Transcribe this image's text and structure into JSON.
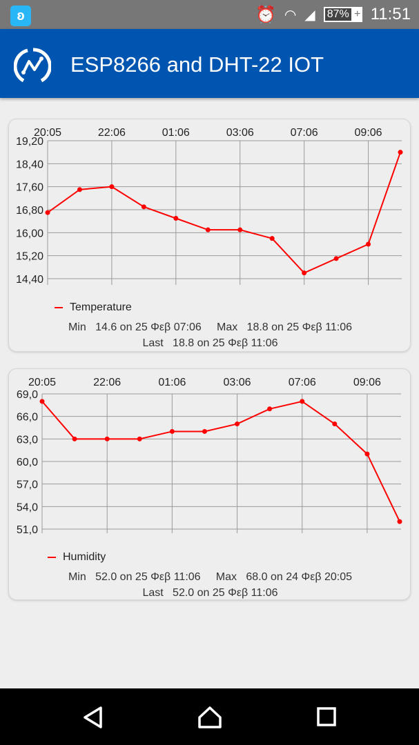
{
  "status_bar": {
    "time": "11:51",
    "battery": "87%",
    "icons": [
      "app-notification-icon",
      "alarm-icon",
      "wifi-icon",
      "signal-icon",
      "battery-charging-icon"
    ]
  },
  "header": {
    "title": "ESP8266 and DHT-22 IOT",
    "icon": "chart-logo-icon",
    "color": "#0055b0"
  },
  "chart_data": [
    {
      "type": "line",
      "x_tick_labels": [
        "20:05",
        "22:06",
        "01:06",
        "03:06",
        "07:06",
        "09:06"
      ],
      "y_tick_labels": [
        "19,20",
        "18,40",
        "17,60",
        "16,80",
        "16,00",
        "15,20",
        "14,40"
      ],
      "ylim": [
        14.4,
        19.2
      ],
      "grid": true,
      "legend": "bottom-left",
      "series": [
        {
          "name": "Temperature",
          "color": "#ff0000",
          "values": [
            16.7,
            17.5,
            17.6,
            16.9,
            16.5,
            16.1,
            16.1,
            15.8,
            14.6,
            15.1,
            15.6,
            18.8
          ]
        }
      ],
      "stats": {
        "min": "Min   14.6 on 25 Φεβ 07:06",
        "max": "Max   18.8 on 25 Φεβ 11:06",
        "last": "Last   18.8 on 25 Φεβ 11:06"
      }
    },
    {
      "type": "line",
      "x_tick_labels": [
        "20:05",
        "22:06",
        "01:06",
        "03:06",
        "07:06",
        "09:06"
      ],
      "y_tick_labels": [
        "69,0",
        "66,0",
        "63,0",
        "60,0",
        "57,0",
        "54,0",
        "51,0"
      ],
      "ylim": [
        51,
        69
      ],
      "grid": true,
      "legend": "bottom-left",
      "series": [
        {
          "name": "Humidity",
          "color": "#ff0000",
          "values": [
            68,
            63,
            63,
            63,
            64,
            64,
            65,
            67,
            68,
            65,
            61,
            52
          ]
        }
      ],
      "stats": {
        "min": "Min   52.0 on 25 Φεβ 11:06",
        "max": "Max   68.0 on 24 Φεβ 20:05",
        "last": "Last   52.0 on 25 Φεβ 11:06"
      }
    }
  ],
  "nav_bar": {
    "icons": [
      "back-icon",
      "home-icon",
      "recents-icon"
    ]
  }
}
